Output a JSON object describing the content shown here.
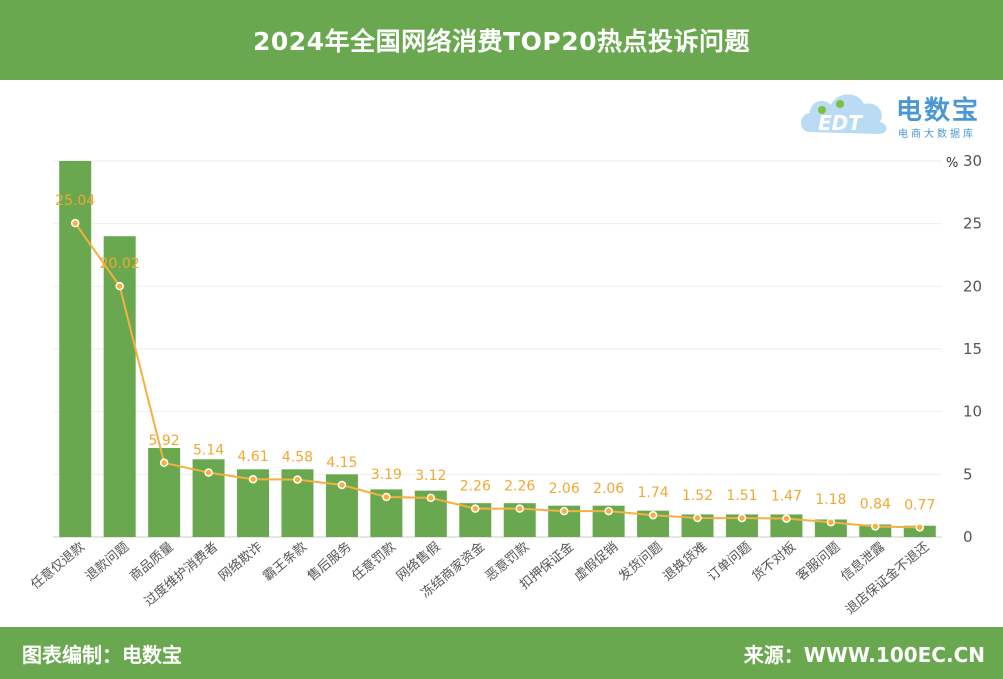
{
  "header": {
    "title": "2024年全国网络消费TOP20热点投诉问题"
  },
  "footer": {
    "credit": "图表编制：电数宝",
    "source": "来源：WWW.100EC.CN"
  },
  "logo": {
    "name": "电数宝",
    "subtitle": "电商大数据库",
    "mark_text": "EDT"
  },
  "colors": {
    "band": "#6aa84f",
    "bar": "#6aa84f",
    "line": "#f5b041",
    "label": "#f0a830",
    "logo": "#4a97d6"
  },
  "chart_data": {
    "type": "bar",
    "categories": [
      "任意仅退款",
      "退款问题",
      "商品质量",
      "过度维护消费者",
      "网络欺诈",
      "霸王条款",
      "售后服务",
      "任意罚款",
      "网络售假",
      "冻结商家资金",
      "恶意罚款",
      "扣押保证金",
      "虚假促销",
      "发货问题",
      "退换货难",
      "订单问题",
      "货不对板",
      "客服问题",
      "信息泄露",
      "退店保证金不退还"
    ],
    "series": [
      {
        "type": "bar",
        "values": [
          30,
          24,
          7.1,
          6.2,
          5.4,
          5.4,
          5.0,
          3.8,
          3.7,
          2.7,
          2.7,
          2.5,
          2.5,
          2.1,
          1.8,
          1.8,
          1.8,
          1.4,
          1.0,
          0.9
        ]
      },
      {
        "type": "line",
        "values": [
          25.04,
          20.02,
          5.92,
          5.14,
          4.61,
          4.58,
          4.15,
          3.19,
          3.12,
          2.26,
          2.26,
          2.06,
          2.06,
          1.74,
          1.52,
          1.51,
          1.47,
          1.18,
          0.84,
          0.77
        ]
      }
    ],
    "data_labels": [
      "25.04",
      "20.02",
      "5.92",
      "5.14",
      "4.61",
      "4.58",
      "4.15",
      "3.19",
      "3.12",
      "2.26",
      "2.26",
      "2.06",
      "2.06",
      "1.74",
      "1.52",
      "1.51",
      "1.47",
      "1.18",
      "0.84",
      "0.77"
    ],
    "y_axis": {
      "position": "right",
      "unit": "%",
      "ylim": [
        0,
        30
      ],
      "ticks": [
        "0",
        "5",
        "10",
        "15",
        "20",
        "25",
        "30"
      ]
    },
    "grid": true
  }
}
